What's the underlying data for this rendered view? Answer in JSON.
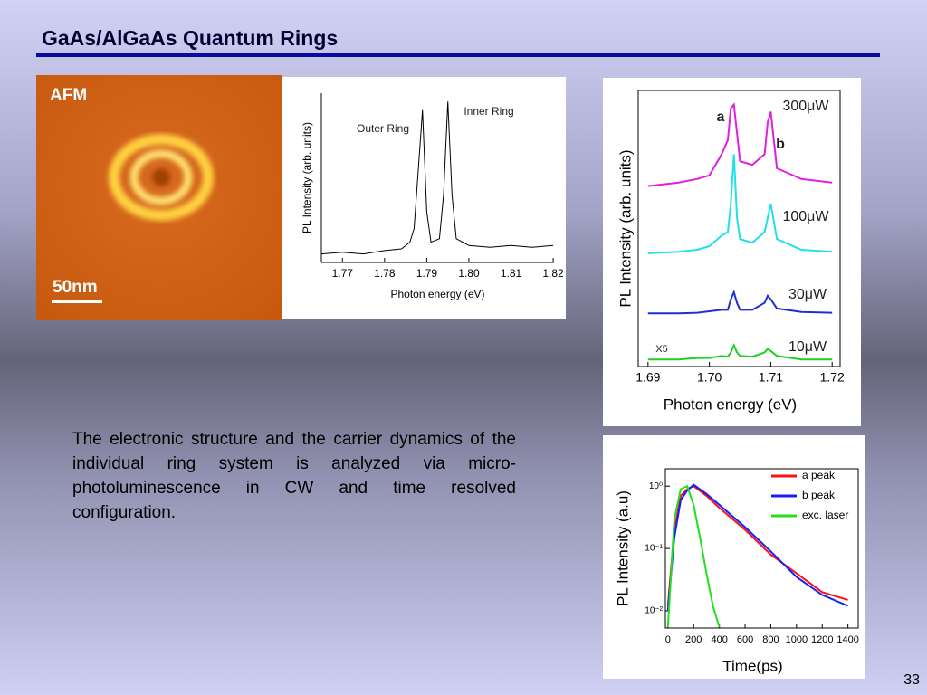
{
  "slide": {
    "title": "GaAs/AlGaAs Quantum Rings",
    "body": "The electronic structure and the carrier dynamics of the individual ring system is analyzed via micro-photoluminescence in CW and time resolved configuration.",
    "page_number": "33"
  },
  "afm": {
    "label": "AFM",
    "scale_bar": "50nm"
  },
  "chart_data": [
    {
      "type": "line",
      "xlabel": "Photon energy (eV)",
      "ylabel": "PL Intensity (arb. units)",
      "annotations": [
        "Outer Ring",
        "Inner Ring"
      ],
      "xlim": [
        1.765,
        1.8202
      ],
      "xticks": [
        1.77,
        1.78,
        1.79,
        {
          "value": 1.8,
          "label": "1.80"
        },
        1.81,
        1.82
      ],
      "ylim": [
        0,
        1
      ],
      "series": [
        {
          "color": "#000000",
          "x": [
            1.765,
            1.77,
            1.775,
            1.78,
            1.784,
            1.786,
            1.787,
            1.788,
            1.789,
            1.79,
            1.791,
            1.793,
            1.794,
            1.795,
            1.796,
            1.797,
            1.8,
            1.805,
            1.81,
            1.815,
            1.82
          ],
          "values": [
            0.05,
            0.06,
            0.05,
            0.07,
            0.08,
            0.12,
            0.2,
            0.55,
            0.9,
            0.3,
            0.12,
            0.14,
            0.4,
            0.95,
            0.4,
            0.14,
            0.1,
            0.09,
            0.1,
            0.09,
            0.1
          ]
        }
      ]
    },
    {
      "type": "line",
      "xlabel": "Photon energy (eV)",
      "ylabel": "PL Intensity (arb. units)",
      "annotations": [
        "a",
        "b",
        "X5"
      ],
      "xlim": [
        1.6884,
        1.7213
      ],
      "xticks": [
        1.69,
        {
          "value": 1.7,
          "label": "1.70"
        },
        1.71,
        1.72
      ],
      "ylim": [
        0,
        3.9
      ],
      "x": [
        1.69,
        1.695,
        1.698,
        1.7,
        1.702,
        1.703,
        1.7035,
        1.704,
        1.7045,
        1.705,
        1.707,
        1.709,
        1.7095,
        1.71,
        1.711,
        1.715,
        1.72
      ],
      "series": [
        {
          "name": "300μW",
          "color": "#e020e0",
          "values": [
            2.55,
            2.6,
            2.65,
            2.7,
            3.0,
            3.2,
            3.65,
            3.7,
            3.3,
            2.9,
            2.85,
            3.0,
            3.45,
            3.6,
            2.8,
            2.65,
            2.6
          ]
        },
        {
          "name": "100μW",
          "color": "#20e0e8",
          "values": [
            1.6,
            1.62,
            1.65,
            1.7,
            1.85,
            1.9,
            2.3,
            3.0,
            2.1,
            1.8,
            1.75,
            1.9,
            2.1,
            2.3,
            1.8,
            1.65,
            1.62
          ]
        },
        {
          "name": "30μW",
          "color": "#2030d0",
          "values": [
            0.75,
            0.75,
            0.76,
            0.78,
            0.8,
            0.8,
            0.95,
            1.05,
            0.9,
            0.8,
            0.8,
            0.9,
            1.0,
            0.95,
            0.82,
            0.77,
            0.76
          ]
        },
        {
          "name": "10μW",
          "color": "#20d020",
          "values": [
            0.1,
            0.1,
            0.12,
            0.12,
            0.15,
            0.14,
            0.2,
            0.3,
            0.2,
            0.15,
            0.14,
            0.2,
            0.25,
            0.22,
            0.15,
            0.1,
            0.1
          ]
        }
      ]
    },
    {
      "type": "line",
      "xlabel": "Time(ps)",
      "ylabel": "PL Intensity (a.u)",
      "log_y": true,
      "legend": "upper right",
      "xlim": [
        -20,
        1480
      ],
      "xticks": [
        0,
        200,
        400,
        600,
        800,
        1000,
        1200,
        1400
      ],
      "ylim": [
        0.0053,
        1.9
      ],
      "yticks": [
        {
          "value": 1,
          "label": "10⁰"
        },
        {
          "value": 0.1,
          "label": "10⁻¹"
        },
        {
          "value": 0.01,
          "label": "10⁻²"
        }
      ],
      "series": [
        {
          "name": "a peak",
          "color": "#ff1010",
          "x": [
            0,
            50,
            100,
            150,
            200,
            300,
            400,
            600,
            800,
            1000,
            1200,
            1400
          ],
          "values": [
            0.012,
            0.2,
            0.7,
            0.9,
            1.0,
            0.7,
            0.45,
            0.2,
            0.08,
            0.04,
            0.02,
            0.015
          ]
        },
        {
          "name": "b peak",
          "color": "#1020ff",
          "x": [
            0,
            50,
            100,
            150,
            200,
            300,
            400,
            600,
            800,
            1000,
            1200,
            1400
          ],
          "values": [
            0.01,
            0.15,
            0.6,
            0.85,
            1.05,
            0.75,
            0.5,
            0.22,
            0.09,
            0.035,
            0.018,
            0.012
          ]
        },
        {
          "name": "exc. laser",
          "color": "#20e020",
          "x": [
            0,
            50,
            100,
            150,
            200,
            250,
            300,
            350,
            400
          ],
          "values": [
            0.0055,
            0.3,
            0.9,
            1.0,
            0.5,
            0.15,
            0.04,
            0.012,
            0.0055
          ]
        }
      ]
    }
  ]
}
